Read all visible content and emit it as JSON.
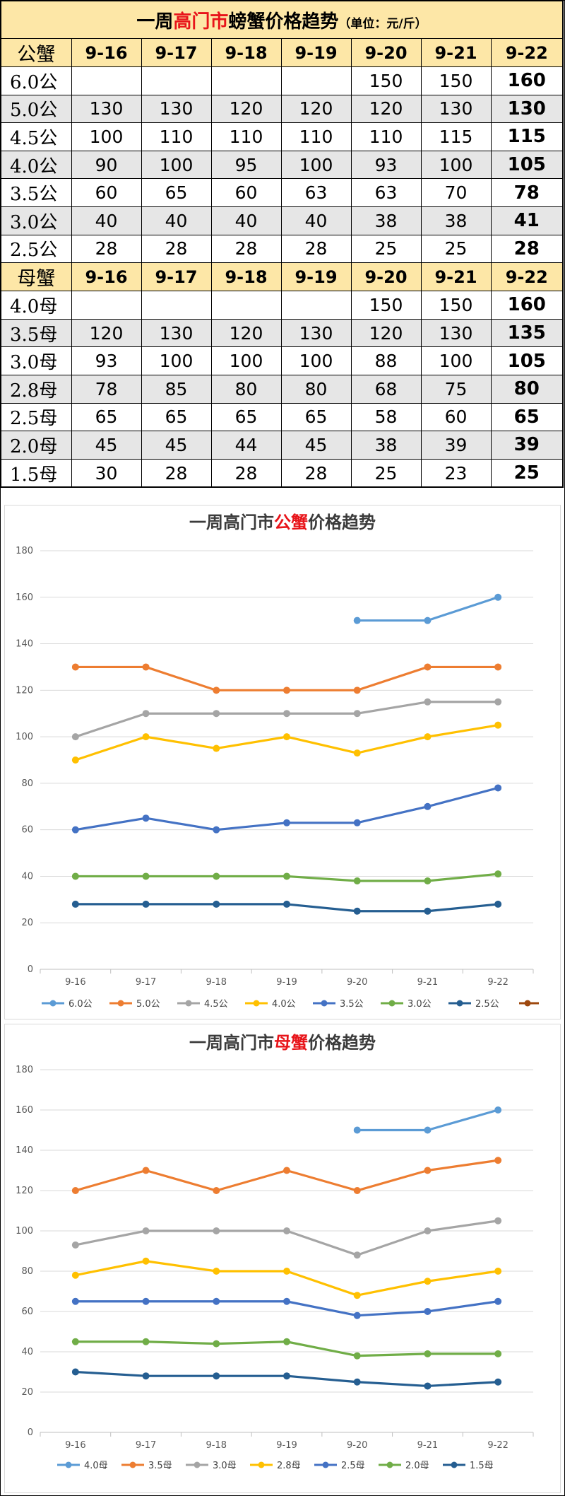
{
  "table": {
    "title_pre": "一周",
    "title_red": "高门市",
    "title_post": "螃蟹价格趋势",
    "title_unit": "（单位：元/斤）",
    "dates": [
      "9-16",
      "9-17",
      "9-18",
      "9-19",
      "9-20",
      "9-21",
      "9-22"
    ],
    "male": {
      "label": "公蟹",
      "rows": [
        {
          "size": "6.0公",
          "values": [
            "",
            "",
            "",
            "",
            "150",
            "150",
            "160"
          ]
        },
        {
          "size": "5.0公",
          "values": [
            "130",
            "130",
            "120",
            "120",
            "120",
            "130",
            "130"
          ]
        },
        {
          "size": "4.5公",
          "values": [
            "100",
            "110",
            "110",
            "110",
            "110",
            "115",
            "115"
          ]
        },
        {
          "size": "4.0公",
          "values": [
            "90",
            "100",
            "95",
            "100",
            "93",
            "100",
            "105"
          ]
        },
        {
          "size": "3.5公",
          "values": [
            "60",
            "65",
            "60",
            "63",
            "63",
            "70",
            "78"
          ]
        },
        {
          "size": "3.0公",
          "values": [
            "40",
            "40",
            "40",
            "40",
            "38",
            "38",
            "41"
          ]
        },
        {
          "size": "2.5公",
          "values": [
            "28",
            "28",
            "28",
            "28",
            "25",
            "25",
            "28"
          ]
        }
      ]
    },
    "female": {
      "label": "母蟹",
      "rows": [
        {
          "size": "4.0母",
          "values": [
            "",
            "",
            "",
            "",
            "150",
            "150",
            "160"
          ]
        },
        {
          "size": "3.5母",
          "values": [
            "120",
            "130",
            "120",
            "130",
            "120",
            "130",
            "135"
          ]
        },
        {
          "size": "3.0母",
          "values": [
            "93",
            "100",
            "100",
            "100",
            "88",
            "100",
            "105"
          ]
        },
        {
          "size": "2.8母",
          "values": [
            "78",
            "85",
            "80",
            "80",
            "68",
            "75",
            "80"
          ]
        },
        {
          "size": "2.5母",
          "values": [
            "65",
            "65",
            "65",
            "65",
            "58",
            "60",
            "65"
          ]
        },
        {
          "size": "2.0母",
          "values": [
            "45",
            "45",
            "44",
            "45",
            "38",
            "39",
            "39"
          ]
        },
        {
          "size": "1.5母",
          "values": [
            "30",
            "28",
            "28",
            "28",
            "25",
            "23",
            "25"
          ]
        }
      ]
    }
  },
  "chart_data": [
    {
      "type": "line",
      "title_pre": "一周高门市",
      "title_red": "公蟹",
      "title_post": "价格趋势",
      "categories": [
        "9-16",
        "9-17",
        "9-18",
        "9-19",
        "9-20",
        "9-21",
        "9-22"
      ],
      "ylim": [
        0,
        180
      ],
      "yticks": [
        "0",
        "20",
        "40",
        "60",
        "80",
        "100",
        "120",
        "140",
        "160",
        "180"
      ],
      "grid": true,
      "legend_position": "bottom",
      "series": [
        {
          "name": "6.0公",
          "color": "#5b9bd5",
          "values": [
            null,
            null,
            null,
            null,
            150,
            150,
            160
          ]
        },
        {
          "name": "5.0公",
          "color": "#ed7d31",
          "values": [
            130,
            130,
            120,
            120,
            120,
            130,
            130
          ]
        },
        {
          "name": "4.5公",
          "color": "#a5a5a5",
          "values": [
            100,
            110,
            110,
            110,
            110,
            115,
            115
          ]
        },
        {
          "name": "4.0公",
          "color": "#ffc000",
          "values": [
            90,
            100,
            95,
            100,
            93,
            100,
            105
          ]
        },
        {
          "name": "3.5公",
          "color": "#4472c4",
          "values": [
            60,
            65,
            60,
            63,
            63,
            70,
            78
          ]
        },
        {
          "name": "3.0公",
          "color": "#70ad47",
          "values": [
            40,
            40,
            40,
            40,
            38,
            38,
            41
          ]
        },
        {
          "name": "2.5公",
          "color": "#255e91",
          "values": [
            28,
            28,
            28,
            28,
            25,
            25,
            28
          ]
        }
      ],
      "extra_legend_color": "#9e480e"
    },
    {
      "type": "line",
      "title_pre": "一周高门市",
      "title_red": "母蟹",
      "title_post": "价格趋势",
      "categories": [
        "9-16",
        "9-17",
        "9-18",
        "9-19",
        "9-20",
        "9-21",
        "9-22"
      ],
      "ylim": [
        0,
        180
      ],
      "yticks": [
        "0",
        "20",
        "40",
        "60",
        "80",
        "100",
        "120",
        "140",
        "160",
        "180"
      ],
      "grid": true,
      "legend_position": "bottom",
      "series": [
        {
          "name": "4.0母",
          "color": "#5b9bd5",
          "values": [
            null,
            null,
            null,
            null,
            150,
            150,
            160
          ]
        },
        {
          "name": "3.5母",
          "color": "#ed7d31",
          "values": [
            120,
            130,
            120,
            130,
            120,
            130,
            135
          ]
        },
        {
          "name": "3.0母",
          "color": "#a5a5a5",
          "values": [
            93,
            100,
            100,
            100,
            88,
            100,
            105
          ]
        },
        {
          "name": "2.8母",
          "color": "#ffc000",
          "values": [
            78,
            85,
            80,
            80,
            68,
            75,
            80
          ]
        },
        {
          "name": "2.5母",
          "color": "#4472c4",
          "values": [
            65,
            65,
            65,
            65,
            58,
            60,
            65
          ]
        },
        {
          "name": "2.0母",
          "color": "#70ad47",
          "values": [
            45,
            45,
            44,
            45,
            38,
            39,
            39
          ]
        },
        {
          "name": "1.5母",
          "color": "#255e91",
          "values": [
            30,
            28,
            28,
            28,
            25,
            23,
            25
          ]
        }
      ]
    }
  ]
}
